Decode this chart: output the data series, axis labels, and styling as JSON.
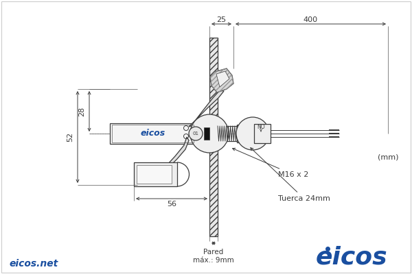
{
  "fig_width": 6.0,
  "fig_height": 4.0,
  "dpi": 100,
  "bg_color": "#ffffff",
  "line_color": "#3a3a3a",
  "dim_color": "#3a3a3a",
  "eicos_blue": "#1a4fa0",
  "hatch_color": "#888888",
  "dim_labels": {
    "top_25": "25",
    "top_400": "400",
    "left_28": "28",
    "left_52": "52",
    "bottom_56": "56",
    "bottom_pared": "Pared\nmáx.: 9mm",
    "right_m16": "M16 x 2",
    "right_tuerca": "Tuerca 24mm",
    "right_mm": "(mm)"
  },
  "footer_left": "eicos.net",
  "footer_right": "eicos",
  "eicos_label_box": "eicos"
}
